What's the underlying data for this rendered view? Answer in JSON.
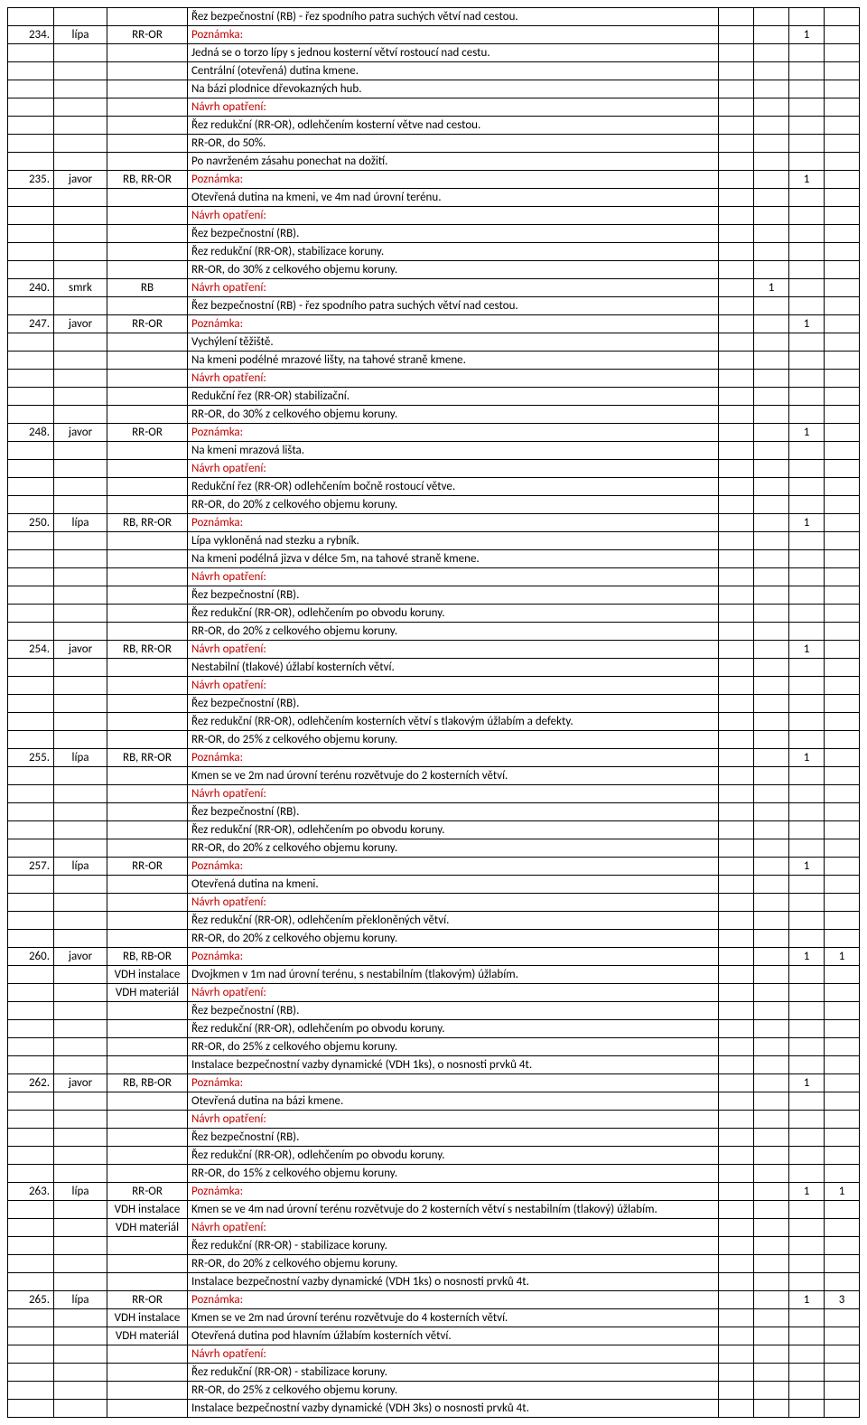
{
  "colors": {
    "text_red": "#c00000",
    "border": "#000000",
    "bg": "#ffffff"
  },
  "font_size": 13,
  "rows": [
    {
      "c1": "",
      "c2": "",
      "c3": "",
      "c4": "Řez bezpečnostní (RB) - řez spodního patra suchých větví nad cestou.",
      "c5": "",
      "c6": "",
      "c7": "",
      "c8": ""
    },
    {
      "c1": "234.",
      "c2": "lípa",
      "c3": "RR-OR",
      "c4": "Poznámka:",
      "red": true,
      "c5": "",
      "c6": "",
      "c7": "1",
      "c8": ""
    },
    {
      "c1": "",
      "c2": "",
      "c3": "",
      "c4": "Jedná se o torzo lípy s jednou kosterní větví rostoucí nad cestu.",
      "c5": "",
      "c6": "",
      "c7": "",
      "c8": ""
    },
    {
      "c1": "",
      "c2": "",
      "c3": "",
      "c4": "Centrální (otevřená) dutina kmene.",
      "c5": "",
      "c6": "",
      "c7": "",
      "c8": ""
    },
    {
      "c1": "",
      "c2": "",
      "c3": "",
      "c4": "Na bázi plodnice dřevokazných hub.",
      "c5": "",
      "c6": "",
      "c7": "",
      "c8": ""
    },
    {
      "c1": "",
      "c2": "",
      "c3": "",
      "c4": "Návrh opatření:",
      "red": true,
      "c5": "",
      "c6": "",
      "c7": "",
      "c8": ""
    },
    {
      "c1": "",
      "c2": "",
      "c3": "",
      "c4": "Řez redukční (RR-OR), odlehčením kosterní větve nad cestou.",
      "c5": "",
      "c6": "",
      "c7": "",
      "c8": ""
    },
    {
      "c1": "",
      "c2": "",
      "c3": "",
      "c4": "RR-OR, do 50%.",
      "c5": "",
      "c6": "",
      "c7": "",
      "c8": ""
    },
    {
      "c1": "",
      "c2": "",
      "c3": "",
      "c4": "Po navrženém zásahu ponechat na dožití.",
      "c5": "",
      "c6": "",
      "c7": "",
      "c8": ""
    },
    {
      "c1": "235.",
      "c2": "javor",
      "c3": "RB, RR-OR",
      "c4": "Poznámka:",
      "red": true,
      "c5": "",
      "c6": "",
      "c7": "1",
      "c8": ""
    },
    {
      "c1": "",
      "c2": "",
      "c3": "",
      "c4": "Otevřená dutina na kmeni, ve 4m nad úrovní terénu.",
      "c5": "",
      "c6": "",
      "c7": "",
      "c8": ""
    },
    {
      "c1": "",
      "c2": "",
      "c3": "",
      "c4": "Návrh opatření:",
      "red": true,
      "c5": "",
      "c6": "",
      "c7": "",
      "c8": ""
    },
    {
      "c1": "",
      "c2": "",
      "c3": "",
      "c4": "Řez bezpečnostní (RB).",
      "c5": "",
      "c6": "",
      "c7": "",
      "c8": ""
    },
    {
      "c1": "",
      "c2": "",
      "c3": "",
      "c4": "Řez redukční (RR-OR), stabilizace koruny.",
      "c5": "",
      "c6": "",
      "c7": "",
      "c8": ""
    },
    {
      "c1": "",
      "c2": "",
      "c3": "",
      "c4": "RR-OR, do 30% z celkového objemu koruny.",
      "c5": "",
      "c6": "",
      "c7": "",
      "c8": ""
    },
    {
      "c1": "240.",
      "c2": "smrk",
      "c3": "RB",
      "c4": "Návrh opatření:",
      "red": true,
      "c5": "",
      "c6": "1",
      "c7": "",
      "c8": ""
    },
    {
      "c1": "",
      "c2": "",
      "c3": "",
      "c4": "Řez bezpečnostní (RB) - řez spodního patra suchých větví nad cestou.",
      "c5": "",
      "c6": "",
      "c7": "",
      "c8": ""
    },
    {
      "c1": "247.",
      "c2": "javor",
      "c3": "RR-OR",
      "c4": "Poznámka:",
      "red": true,
      "c5": "",
      "c6": "",
      "c7": "1",
      "c8": ""
    },
    {
      "c1": "",
      "c2": "",
      "c3": "",
      "c4": "Vychýlení těžiště.",
      "c5": "",
      "c6": "",
      "c7": "",
      "c8": ""
    },
    {
      "c1": "",
      "c2": "",
      "c3": "",
      "c4": "Na kmeni podélné mrazové lišty, na tahové straně kmene.",
      "c5": "",
      "c6": "",
      "c7": "",
      "c8": ""
    },
    {
      "c1": "",
      "c2": "",
      "c3": "",
      "c4": "Návrh opatření:",
      "red": true,
      "c5": "",
      "c6": "",
      "c7": "",
      "c8": ""
    },
    {
      "c1": "",
      "c2": "",
      "c3": "",
      "c4": "Redukční řez (RR-OR) stabilizační.",
      "c5": "",
      "c6": "",
      "c7": "",
      "c8": ""
    },
    {
      "c1": "",
      "c2": "",
      "c3": "",
      "c4": "RR-OR, do 30% z celkového objemu koruny.",
      "c5": "",
      "c6": "",
      "c7": "",
      "c8": ""
    },
    {
      "c1": "248.",
      "c2": "javor",
      "c3": "RR-OR",
      "c4": "Poznámka:",
      "red": true,
      "c5": "",
      "c6": "",
      "c7": "1",
      "c8": ""
    },
    {
      "c1": "",
      "c2": "",
      "c3": "",
      "c4": "Na kmeni mrazová lišta.",
      "c5": "",
      "c6": "",
      "c7": "",
      "c8": ""
    },
    {
      "c1": "",
      "c2": "",
      "c3": "",
      "c4": "Návrh opatření:",
      "red": true,
      "c5": "",
      "c6": "",
      "c7": "",
      "c8": ""
    },
    {
      "c1": "",
      "c2": "",
      "c3": "",
      "c4": "Redukční řez (RR-OR) odlehčením bočně rostoucí větve.",
      "c5": "",
      "c6": "",
      "c7": "",
      "c8": ""
    },
    {
      "c1": "",
      "c2": "",
      "c3": "",
      "c4": "RR-OR, do 20% z celkového objemu koruny.",
      "c5": "",
      "c6": "",
      "c7": "",
      "c8": ""
    },
    {
      "c1": "250.",
      "c2": "lípa",
      "c3": "RB, RR-OR",
      "c4": "Poznámka:",
      "red": true,
      "c5": "",
      "c6": "",
      "c7": "1",
      "c8": ""
    },
    {
      "c1": "",
      "c2": "",
      "c3": "",
      "c4": "Lípa vykloněná nad stezku a rybník.",
      "c5": "",
      "c6": "",
      "c7": "",
      "c8": ""
    },
    {
      "c1": "",
      "c2": "",
      "c3": "",
      "c4": "Na kmeni podélná jizva v délce 5m, na tahové straně kmene.",
      "c5": "",
      "c6": "",
      "c7": "",
      "c8": ""
    },
    {
      "c1": "",
      "c2": "",
      "c3": "",
      "c4": "Návrh opatření:",
      "red": true,
      "c5": "",
      "c6": "",
      "c7": "",
      "c8": ""
    },
    {
      "c1": "",
      "c2": "",
      "c3": "",
      "c4": "Řez bezpečnostní (RB).",
      "c5": "",
      "c6": "",
      "c7": "",
      "c8": ""
    },
    {
      "c1": "",
      "c2": "",
      "c3": "",
      "c4": "Řez redukční (RR-OR), odlehčením po obvodu koruny.",
      "c5": "",
      "c6": "",
      "c7": "",
      "c8": ""
    },
    {
      "c1": "",
      "c2": "",
      "c3": "",
      "c4": "RR-OR, do 20% z celkového objemu koruny.",
      "c5": "",
      "c6": "",
      "c7": "",
      "c8": ""
    },
    {
      "c1": "254.",
      "c2": "javor",
      "c3": "RB, RR-OR",
      "c4": "Návrh opatření:",
      "red": true,
      "c5": "",
      "c6": "",
      "c7": "1",
      "c8": ""
    },
    {
      "c1": "",
      "c2": "",
      "c3": "",
      "c4": "Nestabilní (tlakové) úžlabí kosterních větví.",
      "c5": "",
      "c6": "",
      "c7": "",
      "c8": ""
    },
    {
      "c1": "",
      "c2": "",
      "c3": "",
      "c4": "Návrh opatření:",
      "red": true,
      "c5": "",
      "c6": "",
      "c7": "",
      "c8": ""
    },
    {
      "c1": "",
      "c2": "",
      "c3": "",
      "c4": "Řez bezpečnostní (RB).",
      "c5": "",
      "c6": "",
      "c7": "",
      "c8": ""
    },
    {
      "c1": "",
      "c2": "",
      "c3": "",
      "c4": "Řez redukční (RR-OR), odlehčením kosterních větví s tlakovým úžlabím a defekty.",
      "c5": "",
      "c6": "",
      "c7": "",
      "c8": ""
    },
    {
      "c1": "",
      "c2": "",
      "c3": "",
      "c4": "RR-OR, do 25% z celkového objemu koruny.",
      "c5": "",
      "c6": "",
      "c7": "",
      "c8": ""
    },
    {
      "c1": "255.",
      "c2": "lípa",
      "c3": "RB, RR-OR",
      "c4": "Poznámka:",
      "red": true,
      "c5": "",
      "c6": "",
      "c7": "1",
      "c8": ""
    },
    {
      "c1": "",
      "c2": "",
      "c3": "",
      "c4": "Kmen se ve 2m nad úrovní terénu rozvětvuje do 2 kosterních větví.",
      "c5": "",
      "c6": "",
      "c7": "",
      "c8": ""
    },
    {
      "c1": "",
      "c2": "",
      "c3": "",
      "c4": "Návrh opatření:",
      "red": true,
      "c5": "",
      "c6": "",
      "c7": "",
      "c8": ""
    },
    {
      "c1": "",
      "c2": "",
      "c3": "",
      "c4": "Řez bezpečnostní (RB).",
      "c5": "",
      "c6": "",
      "c7": "",
      "c8": ""
    },
    {
      "c1": "",
      "c2": "",
      "c3": "",
      "c4": "Řez redukční (RR-OR), odlehčením po obvodu koruny.",
      "c5": "",
      "c6": "",
      "c7": "",
      "c8": ""
    },
    {
      "c1": "",
      "c2": "",
      "c3": "",
      "c4": "RR-OR, do 20% z celkového objemu koruny.",
      "c5": "",
      "c6": "",
      "c7": "",
      "c8": ""
    },
    {
      "c1": "257.",
      "c2": "lípa",
      "c3": "RR-OR",
      "c4": "Poznámka:",
      "red": true,
      "c5": "",
      "c6": "",
      "c7": "1",
      "c8": ""
    },
    {
      "c1": "",
      "c2": "",
      "c3": "",
      "c4": "Otevřená dutina na kmeni.",
      "c5": "",
      "c6": "",
      "c7": "",
      "c8": ""
    },
    {
      "c1": "",
      "c2": "",
      "c3": "",
      "c4": "Návrh opatření:",
      "red": true,
      "c5": "",
      "c6": "",
      "c7": "",
      "c8": ""
    },
    {
      "c1": "",
      "c2": "",
      "c3": "",
      "c4": "Řez redukční (RR-OR), odlehčením překloněných větví.",
      "c5": "",
      "c6": "",
      "c7": "",
      "c8": ""
    },
    {
      "c1": "",
      "c2": "",
      "c3": "",
      "c4": "RR-OR, do 20% z celkového objemu koruny.",
      "c5": "",
      "c6": "",
      "c7": "",
      "c8": ""
    },
    {
      "c1": "260.",
      "c2": "javor",
      "c3": "RB, RB-OR",
      "c4": "Poznámka:",
      "red": true,
      "c5": "",
      "c6": "",
      "c7": "1",
      "c8": "1"
    },
    {
      "c1": "",
      "c2": "",
      "c3": "VDH instalace",
      "c4": "Dvojkmen v 1m nad úrovní terénu, s nestabilním (tlakovým) úžlabím.",
      "c5": "",
      "c6": "",
      "c7": "",
      "c8": ""
    },
    {
      "c1": "",
      "c2": "",
      "c3": "VDH materiál",
      "c4": "Návrh opatření:",
      "red": true,
      "c5": "",
      "c6": "",
      "c7": "",
      "c8": ""
    },
    {
      "c1": "",
      "c2": "",
      "c3": "",
      "c4": "Řez bezpečnostní (RB).",
      "c5": "",
      "c6": "",
      "c7": "",
      "c8": ""
    },
    {
      "c1": "",
      "c2": "",
      "c3": "",
      "c4": "Řez redukční (RR-OR), odlehčením po obvodu koruny.",
      "c5": "",
      "c6": "",
      "c7": "",
      "c8": ""
    },
    {
      "c1": "",
      "c2": "",
      "c3": "",
      "c4": "RR-OR, do 25% z celkového objemu koruny.",
      "c5": "",
      "c6": "",
      "c7": "",
      "c8": ""
    },
    {
      "c1": "",
      "c2": "",
      "c3": "",
      "c4": "Instalace bezpečnostní vazby dynamické (VDH 1ks), o nosnosti prvků 4t.",
      "c5": "",
      "c6": "",
      "c7": "",
      "c8": ""
    },
    {
      "c1": "262.",
      "c2": "javor",
      "c3": "RB, RB-OR",
      "c4": "Poznámka:",
      "red": true,
      "c5": "",
      "c6": "",
      "c7": "1",
      "c8": ""
    },
    {
      "c1": "",
      "c2": "",
      "c3": "",
      "c4": "Otevřená dutina na bázi kmene.",
      "c5": "",
      "c6": "",
      "c7": "",
      "c8": ""
    },
    {
      "c1": "",
      "c2": "",
      "c3": "",
      "c4": "Návrh opatření:",
      "red": true,
      "c5": "",
      "c6": "",
      "c7": "",
      "c8": ""
    },
    {
      "c1": "",
      "c2": "",
      "c3": "",
      "c4": "Řez bezpečnostní (RB).",
      "c5": "",
      "c6": "",
      "c7": "",
      "c8": ""
    },
    {
      "c1": "",
      "c2": "",
      "c3": "",
      "c4": "Řez redukční (RR-OR), odlehčením po obvodu koruny.",
      "c5": "",
      "c6": "",
      "c7": "",
      "c8": ""
    },
    {
      "c1": "",
      "c2": "",
      "c3": "",
      "c4": "RR-OR, do 15% z celkového objemu koruny.",
      "c5": "",
      "c6": "",
      "c7": "",
      "c8": ""
    },
    {
      "c1": "263.",
      "c2": "lípa",
      "c3": "RR-OR",
      "c4": "Poznámka:",
      "red": true,
      "c5": "",
      "c6": "",
      "c7": "1",
      "c8": "1"
    },
    {
      "c1": "",
      "c2": "",
      "c3": "VDH instalace",
      "c4": "Kmen se ve 4m nad úrovní terénu rozvětvuje do 2 kosterních větví s nestabilním (tlakový) úžlabím.",
      "c5": "",
      "c6": "",
      "c7": "",
      "c8": ""
    },
    {
      "c1": "",
      "c2": "",
      "c3": "VDH materiál",
      "c4": "Návrh opatření:",
      "red": true,
      "c5": "",
      "c6": "",
      "c7": "",
      "c8": ""
    },
    {
      "c1": "",
      "c2": "",
      "c3": "",
      "c4": "Řez redukční (RR-OR) - stabilizace koruny.",
      "c5": "",
      "c6": "",
      "c7": "",
      "c8": ""
    },
    {
      "c1": "",
      "c2": "",
      "c3": "",
      "c4": "RR-OR, do 20% z celkového objemu koruny.",
      "c5": "",
      "c6": "",
      "c7": "",
      "c8": ""
    },
    {
      "c1": "",
      "c2": "",
      "c3": "",
      "c4": "Instalace bezpečnostní vazby dynamické (VDH 1ks) o nosnosti prvků 4t.",
      "c5": "",
      "c6": "",
      "c7": "",
      "c8": ""
    },
    {
      "c1": "265.",
      "c2": "lípa",
      "c3": "RR-OR",
      "c4": "Poznámka:",
      "red": true,
      "c5": "",
      "c6": "",
      "c7": "1",
      "c8": "3"
    },
    {
      "c1": "",
      "c2": "",
      "c3": "VDH instalace",
      "c4": "Kmen se ve 2m nad úrovní terénu rozvětvuje do 4 kosterních větví.",
      "c5": "",
      "c6": "",
      "c7": "",
      "c8": ""
    },
    {
      "c1": "",
      "c2": "",
      "c3": "VDH materiál",
      "c4": "Otevřená dutina pod hlavním úžlabím kosterních větví.",
      "c5": "",
      "c6": "",
      "c7": "",
      "c8": ""
    },
    {
      "c1": "",
      "c2": "",
      "c3": "",
      "c4": "Návrh opatření:",
      "red": true,
      "c5": "",
      "c6": "",
      "c7": "",
      "c8": ""
    },
    {
      "c1": "",
      "c2": "",
      "c3": "",
      "c4": "Řez redukční (RR-OR) - stabilizace koruny.",
      "c5": "",
      "c6": "",
      "c7": "",
      "c8": ""
    },
    {
      "c1": "",
      "c2": "",
      "c3": "",
      "c4": "RR-OR, do 25% z celkového objemu koruny.",
      "c5": "",
      "c6": "",
      "c7": "",
      "c8": ""
    },
    {
      "c1": "",
      "c2": "",
      "c3": "",
      "c4": "Instalace bezpečnostní vazby dynamické (VDH 3ks) o nosnosti prvků 4t.",
      "c5": "",
      "c6": "",
      "c7": "",
      "c8": ""
    }
  ]
}
